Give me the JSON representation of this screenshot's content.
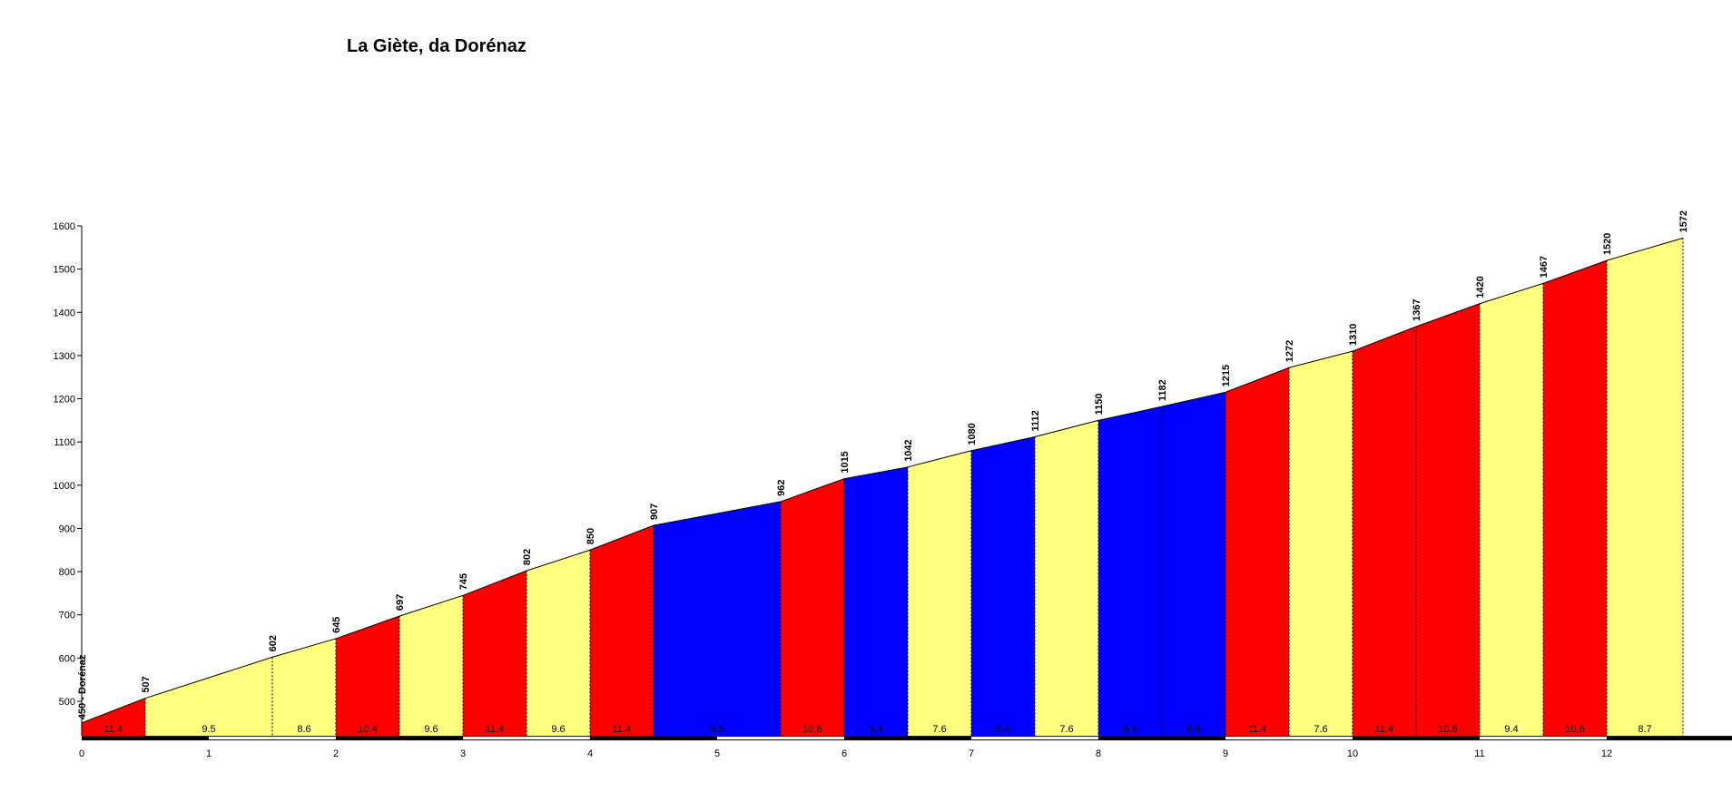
{
  "chart_data": {
    "type": "area",
    "title": "La Giète, da Dorénaz",
    "xlabel": "",
    "ylabel": "",
    "xlim": [
      0,
      13
    ],
    "ylim": [
      420,
      1600
    ],
    "x_ticks": [
      "0",
      "1",
      "2",
      "3",
      "4",
      "5",
      "6",
      "7",
      "8",
      "9",
      "10",
      "11",
      "12"
    ],
    "y_ticks": [
      "500",
      "600",
      "700",
      "800",
      "900",
      "1000",
      "1100",
      "1200",
      "1300",
      "1400",
      "1500",
      "1600"
    ],
    "start_label": "450 - Dorénaz",
    "colors": {
      "steep": "#ff0000",
      "medium": "#ffff80",
      "gentle": "#0000ff"
    },
    "segments": [
      {
        "x0": 0,
        "x1": 0.5,
        "y0": 450,
        "y1": 507,
        "gradient": "11.4",
        "color": "steep"
      },
      {
        "x0": 0.5,
        "x1": 1.5,
        "y0": 507,
        "y1": 602,
        "gradient": "9.5",
        "color": "medium"
      },
      {
        "x0": 1.5,
        "x1": 2,
        "y0": 602,
        "y1": 645,
        "gradient": "8.6",
        "color": "medium"
      },
      {
        "x0": 2,
        "x1": 2.5,
        "y0": 645,
        "y1": 697,
        "gradient": "10.4",
        "color": "steep"
      },
      {
        "x0": 2.5,
        "x1": 3,
        "y0": 697,
        "y1": 745,
        "gradient": "9.6",
        "color": "medium"
      },
      {
        "x0": 3,
        "x1": 3.5,
        "y0": 745,
        "y1": 802,
        "gradient": "11.4",
        "color": "steep"
      },
      {
        "x0": 3.5,
        "x1": 4,
        "y0": 802,
        "y1": 850,
        "gradient": "9.6",
        "color": "medium"
      },
      {
        "x0": 4,
        "x1": 4.5,
        "y0": 850,
        "y1": 907,
        "gradient": "11.4",
        "color": "steep"
      },
      {
        "x0": 4.5,
        "x1": 5.5,
        "y0": 907,
        "y1": 962,
        "gradient": "5.5",
        "color": "gentle"
      },
      {
        "x0": 5.5,
        "x1": 6,
        "y0": 962,
        "y1": 1015,
        "gradient": "10.6",
        "color": "steep"
      },
      {
        "x0": 6,
        "x1": 6.5,
        "y0": 1015,
        "y1": 1042,
        "gradient": "5.4",
        "color": "gentle"
      },
      {
        "x0": 6.5,
        "x1": 7,
        "y0": 1042,
        "y1": 1080,
        "gradient": "7.6",
        "color": "medium"
      },
      {
        "x0": 7,
        "x1": 7.5,
        "y0": 1080,
        "y1": 1112,
        "gradient": "6.4",
        "color": "gentle"
      },
      {
        "x0": 7.5,
        "x1": 8,
        "y0": 1112,
        "y1": 1150,
        "gradient": "7.6",
        "color": "medium"
      },
      {
        "x0": 8,
        "x1": 8.5,
        "y0": 1150,
        "y1": 1182,
        "gradient": "6.4",
        "color": "gentle"
      },
      {
        "x0": 8.5,
        "x1": 9,
        "y0": 1182,
        "y1": 1215,
        "gradient": "6.6",
        "color": "gentle"
      },
      {
        "x0": 9,
        "x1": 9.5,
        "y0": 1215,
        "y1": 1272,
        "gradient": "11.4",
        "color": "steep"
      },
      {
        "x0": 9.5,
        "x1": 10,
        "y0": 1272,
        "y1": 1310,
        "gradient": "7.6",
        "color": "medium"
      },
      {
        "x0": 10,
        "x1": 10.5,
        "y0": 1310,
        "y1": 1367,
        "gradient": "11.4",
        "color": "steep"
      },
      {
        "x0": 10.5,
        "x1": 11,
        "y0": 1367,
        "y1": 1420,
        "gradient": "10.6",
        "color": "steep"
      },
      {
        "x0": 11,
        "x1": 11.5,
        "y0": 1420,
        "y1": 1467,
        "gradient": "9.4",
        "color": "medium"
      },
      {
        "x0": 11.5,
        "x1": 12,
        "y0": 1467,
        "y1": 1520,
        "gradient": "10.6",
        "color": "steep"
      },
      {
        "x0": 12,
        "x1": 12.6,
        "y0": 1520,
        "y1": 1572,
        "gradient": "8.7",
        "color": "medium"
      }
    ],
    "altitude_labels": [
      {
        "x": 0.5,
        "value": "507"
      },
      {
        "x": 1.5,
        "value": "602"
      },
      {
        "x": 2,
        "value": "645"
      },
      {
        "x": 2.5,
        "value": "697"
      },
      {
        "x": 3,
        "value": "745"
      },
      {
        "x": 3.5,
        "value": "802"
      },
      {
        "x": 4,
        "value": "850"
      },
      {
        "x": 4.5,
        "value": "907"
      },
      {
        "x": 5.5,
        "value": "962"
      },
      {
        "x": 6,
        "value": "1015"
      },
      {
        "x": 6.5,
        "value": "1042"
      },
      {
        "x": 7,
        "value": "1080"
      },
      {
        "x": 7.5,
        "value": "1112"
      },
      {
        "x": 8,
        "value": "1150"
      },
      {
        "x": 8.5,
        "value": "1182"
      },
      {
        "x": 9,
        "value": "1215"
      },
      {
        "x": 9.5,
        "value": "1272"
      },
      {
        "x": 10,
        "value": "1310"
      },
      {
        "x": 10.5,
        "value": "1367"
      },
      {
        "x": 11,
        "value": "1420"
      },
      {
        "x": 11.5,
        "value": "1467"
      },
      {
        "x": 12,
        "value": "1520"
      },
      {
        "x": 12.6,
        "value": "1572"
      }
    ],
    "grid": false,
    "legend": "none"
  }
}
